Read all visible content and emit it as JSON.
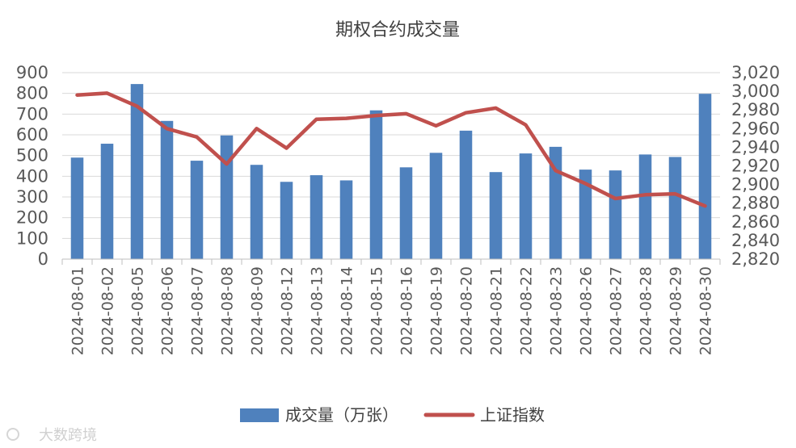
{
  "chart_data": {
    "type": "bar",
    "title": "期权合约成交量",
    "categories": [
      "2024-08-01",
      "2024-08-02",
      "2024-08-05",
      "2024-08-06",
      "2024-08-07",
      "2024-08-08",
      "2024-08-09",
      "2024-08-12",
      "2024-08-13",
      "2024-08-14",
      "2024-08-15",
      "2024-08-16",
      "2024-08-19",
      "2024-08-20",
      "2024-08-21",
      "2024-08-22",
      "2024-08-23",
      "2024-08-26",
      "2024-08-27",
      "2024-08-28",
      "2024-08-29",
      "2024-08-30"
    ],
    "series": [
      {
        "name": "成交量（万张）",
        "type": "bar",
        "axis": "left",
        "color": "#4f81bd",
        "values": [
          490,
          557,
          845,
          667,
          475,
          597,
          455,
          373,
          405,
          380,
          718,
          443,
          513,
          620,
          420,
          510,
          542,
          432,
          428,
          505,
          493,
          798
        ]
      },
      {
        "name": "上证指数",
        "type": "line",
        "axis": "right",
        "color": "#c0504d",
        "values": [
          2996,
          2998,
          2984,
          2960,
          2951,
          2922,
          2960,
          2939,
          2970,
          2971,
          2974,
          2976,
          2963,
          2977,
          2982,
          2964,
          2915,
          2901,
          2885,
          2889,
          2890,
          2877
        ]
      }
    ],
    "y_left": {
      "min": 0,
      "max": 900,
      "step": 100,
      "ticks": [
        "0",
        "100",
        "200",
        "300",
        "400",
        "500",
        "600",
        "700",
        "800",
        "900"
      ]
    },
    "y_right": {
      "min": 2820,
      "max": 3020,
      "step": 20,
      "ticks": [
        "2,820",
        "2,840",
        "2,860",
        "2,880",
        "2,900",
        "2,920",
        "2,940",
        "2,960",
        "2,980",
        "3,000",
        "3,020"
      ]
    },
    "grid": true,
    "legend_position": "bottom"
  },
  "watermark": "大数跨境"
}
